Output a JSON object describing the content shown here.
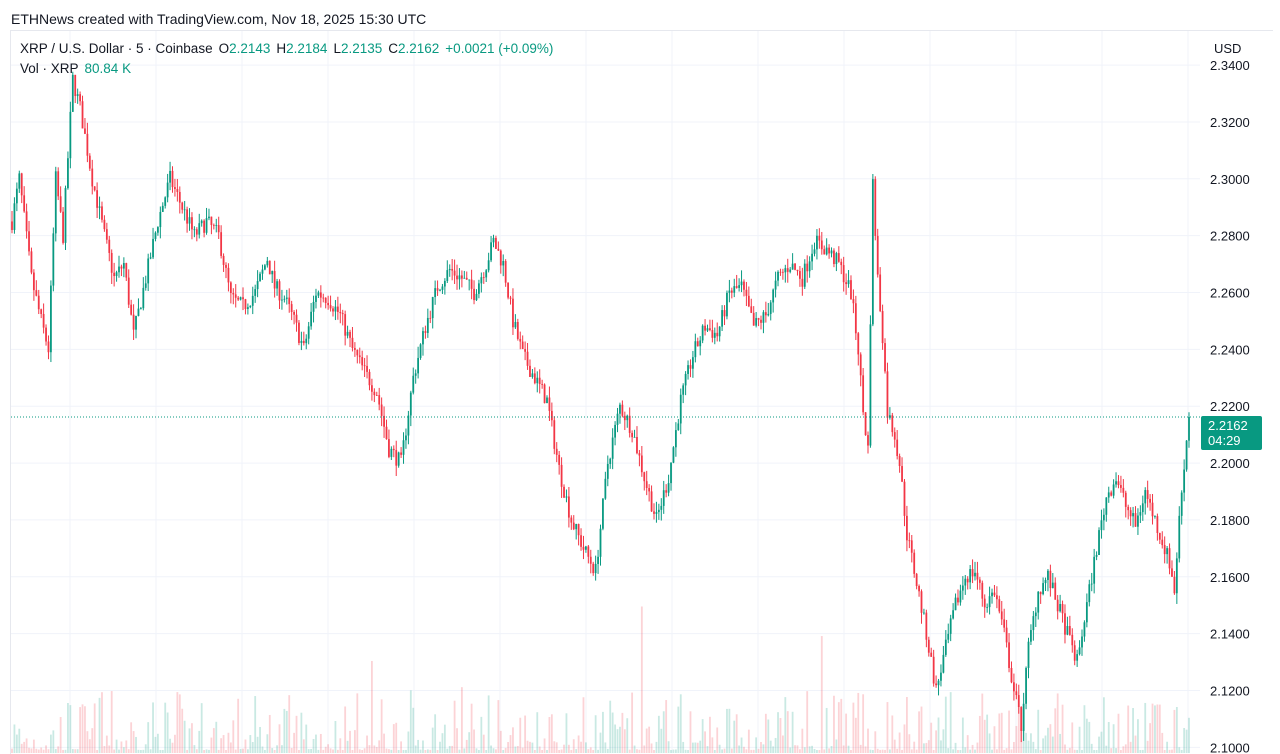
{
  "header": {
    "credit": "ETHNews created with TradingView.com, Nov 18, 2025 15:30 UTC"
  },
  "legend": {
    "symbol": "XRP / U.S. Dollar · 5 · Coinbase",
    "open_label": "O",
    "open": "2.2143",
    "high_label": "H",
    "high": "2.2184",
    "low_label": "L",
    "low": "2.2135",
    "close_label": "C",
    "close": "2.2162",
    "change": "+0.0021 (+0.09%)",
    "volume_label": "Vol · XRP",
    "volume": "80.84 K"
  },
  "price_axis": {
    "currency": "USD",
    "last_price": "2.2162",
    "countdown": "04:29"
  },
  "colors": {
    "up": "#089981",
    "down": "#f23645",
    "grid": "#f0f3fa",
    "axis_text": "#131722",
    "last_price_tag": "#089981"
  },
  "chart_data": {
    "type": "candlestick",
    "title": "XRP / U.S. Dollar · 5 · Coinbase",
    "interval": "5",
    "y_ticks": [
      "2.3400",
      "2.3200",
      "2.3000",
      "2.2800",
      "2.2600",
      "2.2400",
      "2.2200",
      "2.2000",
      "2.1800",
      "2.1600",
      "2.1400",
      "2.1200",
      "2.1000"
    ],
    "ylim": [
      2.098,
      2.352
    ],
    "grid": true,
    "last_price": 2.2162,
    "price_path": [
      [
        0,
        2.285
      ],
      [
        3,
        2.3
      ],
      [
        8,
        2.265
      ],
      [
        12,
        2.25
      ],
      [
        15,
        2.24
      ],
      [
        18,
        2.3
      ],
      [
        21,
        2.28
      ],
      [
        25,
        2.335
      ],
      [
        28,
        2.325
      ],
      [
        33,
        2.3
      ],
      [
        38,
        2.28
      ],
      [
        42,
        2.265
      ],
      [
        46,
        2.27
      ],
      [
        50,
        2.245
      ],
      [
        55,
        2.265
      ],
      [
        60,
        2.285
      ],
      [
        65,
        2.3
      ],
      [
        70,
        2.29
      ],
      [
        75,
        2.28
      ],
      [
        80,
        2.285
      ],
      [
        85,
        2.28
      ],
      [
        90,
        2.258
      ],
      [
        95,
        2.255
      ],
      [
        100,
        2.26
      ],
      [
        105,
        2.272
      ],
      [
        108,
        2.262
      ],
      [
        112,
        2.258
      ],
      [
        116,
        2.25
      ],
      [
        120,
        2.24
      ],
      [
        125,
        2.26
      ],
      [
        130,
        2.258
      ],
      [
        135,
        2.252
      ],
      [
        140,
        2.24
      ],
      [
        145,
        2.232
      ],
      [
        150,
        2.225
      ],
      [
        155,
        2.205
      ],
      [
        160,
        2.2
      ],
      [
        165,
        2.23
      ],
      [
        170,
        2.248
      ],
      [
        175,
        2.262
      ],
      [
        180,
        2.268
      ],
      [
        185,
        2.265
      ],
      [
        190,
        2.26
      ],
      [
        195,
        2.27
      ],
      [
        198,
        2.278
      ],
      [
        202,
        2.27
      ],
      [
        206,
        2.25
      ],
      [
        210,
        2.238
      ],
      [
        215,
        2.23
      ],
      [
        220,
        2.222
      ],
      [
        225,
        2.198
      ],
      [
        230,
        2.18
      ],
      [
        235,
        2.17
      ],
      [
        240,
        2.162
      ],
      [
        245,
        2.2
      ],
      [
        250,
        2.22
      ],
      [
        255,
        2.212
      ],
      [
        260,
        2.195
      ],
      [
        265,
        2.18
      ],
      [
        270,
        2.195
      ],
      [
        275,
        2.222
      ],
      [
        280,
        2.238
      ],
      [
        285,
        2.248
      ],
      [
        290,
        2.245
      ],
      [
        295,
        2.26
      ],
      [
        300,
        2.262
      ],
      [
        305,
        2.248
      ],
      [
        310,
        2.252
      ],
      [
        315,
        2.265
      ],
      [
        320,
        2.27
      ],
      [
        325,
        2.265
      ],
      [
        330,
        2.278
      ],
      [
        335,
        2.275
      ],
      [
        340,
        2.27
      ],
      [
        345,
        2.26
      ],
      [
        348,
        2.24
      ],
      [
        350,
        2.218
      ],
      [
        352,
        2.205
      ],
      [
        354,
        2.298
      ],
      [
        356,
        2.265
      ],
      [
        358,
        2.245
      ],
      [
        360,
        2.218
      ],
      [
        363,
        2.21
      ],
      [
        365,
        2.2
      ],
      [
        368,
        2.175
      ],
      [
        372,
        2.158
      ],
      [
        376,
        2.14
      ],
      [
        380,
        2.12
      ],
      [
        384,
        2.135
      ],
      [
        388,
        2.15
      ],
      [
        392,
        2.16
      ],
      [
        396,
        2.162
      ],
      [
        400,
        2.15
      ],
      [
        404,
        2.155
      ],
      [
        408,
        2.14
      ],
      [
        412,
        2.12
      ],
      [
        415,
        2.108
      ],
      [
        418,
        2.135
      ],
      [
        422,
        2.155
      ],
      [
        426,
        2.16
      ],
      [
        430,
        2.15
      ],
      [
        434,
        2.14
      ],
      [
        438,
        2.13
      ],
      [
        442,
        2.15
      ],
      [
        446,
        2.17
      ],
      [
        450,
        2.188
      ],
      [
        454,
        2.195
      ],
      [
        458,
        2.185
      ],
      [
        462,
        2.178
      ],
      [
        466,
        2.19
      ],
      [
        470,
        2.18
      ],
      [
        474,
        2.17
      ],
      [
        476,
        2.165
      ],
      [
        478,
        2.155
      ],
      [
        480,
        2.18
      ],
      [
        482,
        2.2
      ],
      [
        484,
        2.216
      ]
    ],
    "volume_note": "Volume histogram along the bottom; last bar volume 80.84 K"
  }
}
